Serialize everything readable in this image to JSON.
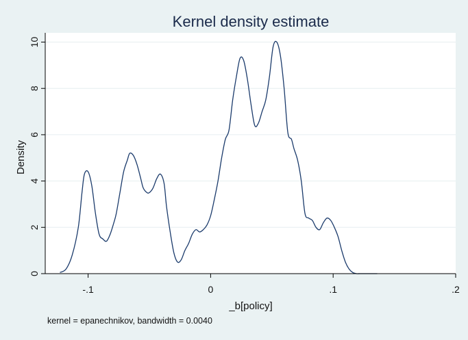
{
  "chart_data": {
    "type": "line",
    "title": "Kernel density estimate",
    "xlabel": "_b[policy]",
    "ylabel": "Density",
    "note": "kernel = epanechnikov, bandwidth = 0.0040",
    "xlim": [
      -0.135,
      0.2
    ],
    "ylim": [
      0,
      10.4
    ],
    "xticks": [
      {
        "value": -0.1,
        "label": "-.1"
      },
      {
        "value": 0,
        "label": "0"
      },
      {
        "value": 0.1,
        "label": ".1"
      },
      {
        "value": 0.2,
        "label": ".2"
      }
    ],
    "yticks": [
      {
        "value": 0,
        "label": "0"
      },
      {
        "value": 2,
        "label": "2"
      },
      {
        "value": 4,
        "label": "4"
      },
      {
        "value": 6,
        "label": "6"
      },
      {
        "value": 8,
        "label": "8"
      },
      {
        "value": 10,
        "label": "10"
      }
    ],
    "grid": true,
    "colors": {
      "line": "#1a3a6b",
      "grid": "#e6eef0",
      "plot_bg": "#ffffff",
      "page_bg": "#eaf2f3"
    },
    "series": [
      {
        "x": [
          -0.123,
          -0.118,
          -0.113,
          -0.108,
          -0.105,
          -0.103,
          -0.1,
          -0.097,
          -0.094,
          -0.091,
          -0.088,
          -0.085,
          -0.082,
          -0.079,
          -0.077,
          -0.074,
          -0.071,
          -0.068,
          -0.066,
          -0.063,
          -0.06,
          -0.057,
          -0.055,
          -0.052,
          -0.05,
          -0.047,
          -0.044,
          -0.041,
          -0.038,
          -0.036,
          -0.033,
          -0.03,
          -0.027,
          -0.024,
          -0.021,
          -0.018,
          -0.015,
          -0.012,
          -0.009,
          -0.006,
          -0.003,
          0,
          0.003,
          0.006,
          0.009,
          0.012,
          0.015,
          0.018,
          0.021,
          0.024,
          0.027,
          0.03,
          0.033,
          0.036,
          0.039,
          0.042,
          0.045,
          0.048,
          0.051,
          0.054,
          0.057,
          0.06,
          0.063,
          0.066,
          0.068,
          0.071,
          0.074,
          0.077,
          0.08,
          0.083,
          0.086,
          0.089,
          0.092,
          0.095,
          0.098,
          0.101,
          0.104,
          0.107,
          0.11,
          0.113,
          0.116,
          0.119,
          0.122,
          0.125,
          0.128,
          0.131,
          0.134,
          0.136
        ],
        "y": [
          0.05,
          0.2,
          0.8,
          2.0,
          3.5,
          4.3,
          4.4,
          3.8,
          2.6,
          1.7,
          1.5,
          1.4,
          1.7,
          2.2,
          2.6,
          3.5,
          4.4,
          4.9,
          5.2,
          5.1,
          4.7,
          4.1,
          3.7,
          3.5,
          3.5,
          3.7,
          4.1,
          4.3,
          3.9,
          2.9,
          1.8,
          0.9,
          0.5,
          0.6,
          1.0,
          1.3,
          1.7,
          1.9,
          1.8,
          1.9,
          2.1,
          2.5,
          3.2,
          4.0,
          5.0,
          5.8,
          6.2,
          7.5,
          8.5,
          9.3,
          9.2,
          8.4,
          7.3,
          6.4,
          6.5,
          7.0,
          7.5,
          8.5,
          9.8,
          10.0,
          9.4,
          8.0,
          6.1,
          5.8,
          5.4,
          4.9,
          4.0,
          2.6,
          2.4,
          2.3,
          2.0,
          1.9,
          2.2,
          2.4,
          2.3,
          2.0,
          1.6,
          1.0,
          0.5,
          0.2,
          0.05,
          0.0,
          0.0,
          0.0,
          0.0,
          0.0,
          0.0,
          0.0
        ]
      }
    ]
  }
}
